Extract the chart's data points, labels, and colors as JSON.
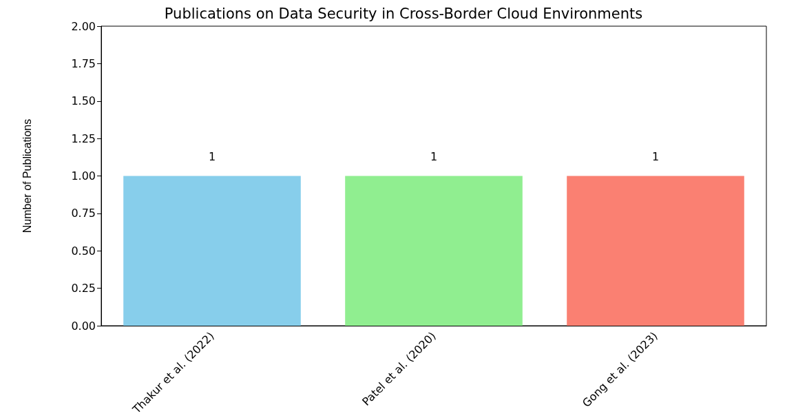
{
  "chart_data": {
    "type": "bar",
    "title": "Publications on Data Security in Cross-Border Cloud Environments",
    "ylabel": "Number of Publications",
    "categories": [
      "Thakur et al. (2022)",
      "Patel et al. (2020)",
      "Gong et al. (2023)"
    ],
    "values": [
      1,
      1,
      1
    ],
    "colors": [
      "#87ceeb",
      "#90ee90",
      "#fa8072"
    ],
    "ylim": [
      0,
      2
    ],
    "yticks": [
      {
        "value": 0,
        "label": "0.00"
      },
      {
        "value": 0.25,
        "label": "0.25"
      },
      {
        "value": 0.5,
        "label": "0.50"
      },
      {
        "value": 0.75,
        "label": "0.75"
      },
      {
        "value": 1,
        "label": "1.00"
      },
      {
        "value": 1.25,
        "label": "1.25"
      },
      {
        "value": 1.5,
        "label": "1.50"
      },
      {
        "value": 1.75,
        "label": "1.75"
      },
      {
        "value": 2,
        "label": "2.00"
      }
    ],
    "data_labels": true,
    "grid": false
  }
}
